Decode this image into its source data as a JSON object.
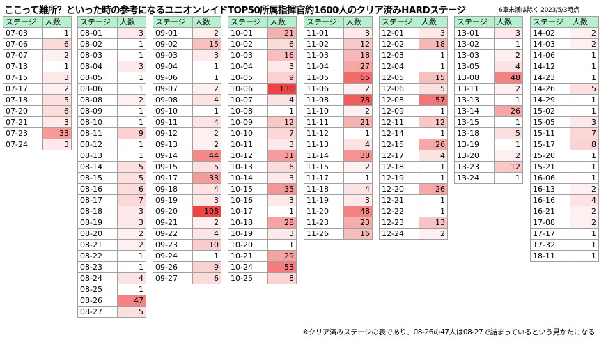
{
  "header": {
    "title": "ここって難所？といった時の参考になるユニオンレイドTOP50所属指揮官約1600人のクリア済みHARDステージ",
    "subtitle": "6章未満は除く 2023/5/3時点",
    "footnote": "※クリア済みステージの表であり、08-26の47人は08-27で詰まっているという見かたになる"
  },
  "column_headers": {
    "stage": "ステージ",
    "count": "人数"
  },
  "heat_colors": {
    "low": "#ffffff",
    "high": "#ee4444"
  },
  "tables": [
    {
      "rows": [
        [
          "07-03",
          "1"
        ],
        [
          "07-06",
          "6"
        ],
        [
          "07-07",
          "2"
        ],
        [
          "07-13",
          "1"
        ],
        [
          "07-15",
          "3"
        ],
        [
          "07-17",
          "2"
        ],
        [
          "07-18",
          "5"
        ],
        [
          "07-20",
          "6"
        ],
        [
          "07-21",
          "3"
        ],
        [
          "07-23",
          "33"
        ],
        [
          "07-24",
          "3"
        ]
      ]
    },
    {
      "rows": [
        [
          "08-01",
          "3"
        ],
        [
          "08-02",
          "1"
        ],
        [
          "08-03",
          "1"
        ],
        [
          "08-04",
          "3"
        ],
        [
          "08-05",
          "1"
        ],
        [
          "08-06",
          "1"
        ],
        [
          "08-08",
          "2"
        ],
        [
          "08-09",
          "1"
        ],
        [
          "08-10",
          "1"
        ],
        [
          "08-11",
          "9"
        ],
        [
          "08-12",
          "1"
        ],
        [
          "08-13",
          "1"
        ],
        [
          "08-14",
          "5"
        ],
        [
          "08-15",
          "5"
        ],
        [
          "08-16",
          "6"
        ],
        [
          "08-17",
          "7"
        ],
        [
          "08-18",
          "3"
        ],
        [
          "08-19",
          "3"
        ],
        [
          "08-20",
          "2"
        ],
        [
          "08-21",
          "2"
        ],
        [
          "08-22",
          "1"
        ],
        [
          "08-23",
          "1"
        ],
        [
          "08-24",
          "4"
        ],
        [
          "08-25",
          "1"
        ],
        [
          "08-26",
          "47"
        ],
        [
          "08-27",
          "5"
        ]
      ]
    },
    {
      "rows": [
        [
          "09-01",
          "2"
        ],
        [
          "09-02",
          "15"
        ],
        [
          "09-03",
          "3"
        ],
        [
          "09-04",
          "1"
        ],
        [
          "09-06",
          "1"
        ],
        [
          "09-07",
          "2"
        ],
        [
          "09-08",
          "4"
        ],
        [
          "09-10",
          "1"
        ],
        [
          "09-11",
          "4"
        ],
        [
          "09-12",
          "2"
        ],
        [
          "09-13",
          "2"
        ],
        [
          "09-14",
          "44"
        ],
        [
          "09-15",
          "5"
        ],
        [
          "09-17",
          "33"
        ],
        [
          "09-18",
          "4"
        ],
        [
          "09-19",
          "3"
        ],
        [
          "09-20",
          "108"
        ],
        [
          "09-21",
          "2"
        ],
        [
          "09-22",
          "4"
        ],
        [
          "09-23",
          "10"
        ],
        [
          "09-24",
          "1"
        ],
        [
          "09-26",
          "9"
        ],
        [
          "09-27",
          "6"
        ]
      ]
    },
    {
      "rows": [
        [
          "10-01",
          "21"
        ],
        [
          "10-02",
          "6"
        ],
        [
          "10-03",
          "16"
        ],
        [
          "10-04",
          "3"
        ],
        [
          "10-05",
          "9"
        ],
        [
          "10-06",
          "130"
        ],
        [
          "10-07",
          "4"
        ],
        [
          "10-08",
          "1"
        ],
        [
          "10-09",
          "12"
        ],
        [
          "10-10",
          "7"
        ],
        [
          "10-11",
          "3"
        ],
        [
          "10-12",
          "31"
        ],
        [
          "10-13",
          "6"
        ],
        [
          "10-14",
          "3"
        ],
        [
          "10-15",
          "35"
        ],
        [
          "10-16",
          "3"
        ],
        [
          "10-17",
          "1"
        ],
        [
          "10-18",
          "28"
        ],
        [
          "10-19",
          "3"
        ],
        [
          "10-20",
          "1"
        ],
        [
          "10-21",
          "29"
        ],
        [
          "10-24",
          "53"
        ],
        [
          "10-25",
          "8"
        ]
      ]
    },
    {
      "rows": [
        [
          "11-01",
          "3"
        ],
        [
          "11-02",
          "12"
        ],
        [
          "11-03",
          "18"
        ],
        [
          "11-04",
          "27"
        ],
        [
          "11-05",
          "65"
        ],
        [
          "11-06",
          "2"
        ],
        [
          "11-08",
          "78"
        ],
        [
          "11-10",
          "2"
        ],
        [
          "11-11",
          "21"
        ],
        [
          "11-12",
          "1"
        ],
        [
          "11-13",
          "4"
        ],
        [
          "11-14",
          "38"
        ],
        [
          "11-15",
          "2"
        ],
        [
          "11-17",
          "1"
        ],
        [
          "11-18",
          "4"
        ],
        [
          "11-19",
          "3"
        ],
        [
          "11-20",
          "48"
        ],
        [
          "11-23",
          "23"
        ],
        [
          "11-26",
          "16"
        ]
      ]
    },
    {
      "rows": [
        [
          "12-01",
          "3"
        ],
        [
          "12-02",
          "18"
        ],
        [
          "12-03",
          "1"
        ],
        [
          "12-04",
          "1"
        ],
        [
          "12-05",
          "15"
        ],
        [
          "12-06",
          "5"
        ],
        [
          "12-08",
          "57"
        ],
        [
          "12-09",
          "1"
        ],
        [
          "12-11",
          "12"
        ],
        [
          "12-14",
          "1"
        ],
        [
          "12-15",
          "26"
        ],
        [
          "12-17",
          "4"
        ],
        [
          "12-18",
          "1"
        ],
        [
          "12-19",
          "1"
        ],
        [
          "12-20",
          "26"
        ],
        [
          "12-21",
          "1"
        ],
        [
          "12-22",
          "1"
        ],
        [
          "12-23",
          "13"
        ],
        [
          "12-24",
          "2"
        ]
      ]
    },
    {
      "rows": [
        [
          "13-01",
          "3"
        ],
        [
          "13-02",
          "1"
        ],
        [
          "13-03",
          "2"
        ],
        [
          "13-05",
          "4"
        ],
        [
          "13-08",
          "48"
        ],
        [
          "13-11",
          "2"
        ],
        [
          "13-13",
          "1"
        ],
        [
          "13-14",
          "26"
        ],
        [
          "13-15",
          "1"
        ],
        [
          "13-18",
          "5"
        ],
        [
          "13-19",
          "1"
        ],
        [
          "13-20",
          "2"
        ],
        [
          "13-23",
          "12"
        ],
        [
          "13-24",
          "1"
        ]
      ]
    },
    {
      "rows": [
        [
          "14-02",
          "2"
        ],
        [
          "14-03",
          "2"
        ],
        [
          "14-06",
          "1"
        ],
        [
          "14-12",
          "1"
        ],
        [
          "14-23",
          "1"
        ],
        [
          "14-26",
          "5"
        ],
        [
          "14-29",
          "1"
        ],
        [
          "15-02",
          "1"
        ],
        [
          "15-05",
          "3"
        ],
        [
          "15-11",
          "7"
        ],
        [
          "15-17",
          "8"
        ],
        [
          "15-20",
          "1"
        ],
        [
          "15-21",
          "1"
        ],
        [
          "16-06",
          "1"
        ],
        [
          "16-13",
          "2"
        ],
        [
          "16-16",
          "4"
        ],
        [
          "16-21",
          "2"
        ],
        [
          "17-08",
          "2"
        ],
        [
          "17-17",
          "1"
        ],
        [
          "17-32",
          "1"
        ],
        [
          "18-11",
          "1"
        ]
      ]
    }
  ]
}
